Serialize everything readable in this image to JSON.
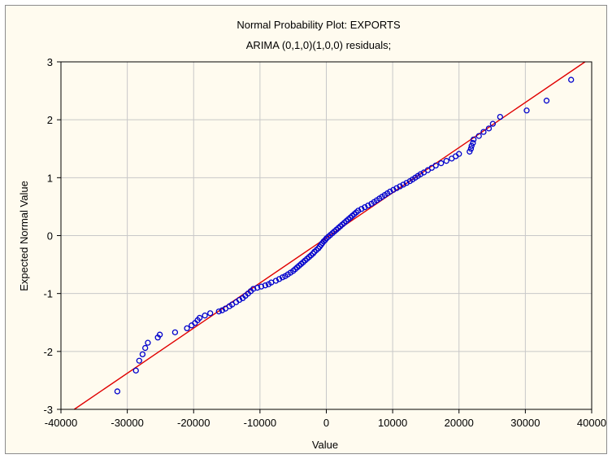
{
  "chart_data": {
    "type": "scatter",
    "title": "Normal Probability Plot: EXPORTS",
    "subtitle": "ARIMA (0,1,0)(1,0,0) residuals;",
    "xlabel": "Value",
    "ylabel": "Expected Normal Value",
    "xlim": [
      -40000,
      40000
    ],
    "ylim": [
      -3,
      3
    ],
    "xticks": [
      "-40000",
      "-30000",
      "-20000",
      "-10000",
      "0",
      "10000",
      "20000",
      "30000",
      "40000"
    ],
    "yticks": [
      "-3",
      "-2",
      "-1",
      "0",
      "1",
      "2",
      "3"
    ],
    "grid": true,
    "colors": {
      "points": "#0000cc",
      "fit_line": "#e00000",
      "grid": "#c8c8c8",
      "background": "#fffbef"
    },
    "fit_line": {
      "x": [
        -38000,
        39000
      ],
      "y": [
        -3.0,
        3.0
      ]
    },
    "series": [
      {
        "values": [
          [
            -31500,
            -2.69
          ],
          [
            -28700,
            -2.33
          ],
          [
            -28200,
            -2.16
          ],
          [
            -27700,
            -2.05
          ],
          [
            -27300,
            -1.94
          ],
          [
            -26900,
            -1.85
          ],
          [
            -25400,
            -1.76
          ],
          [
            -25100,
            -1.71
          ],
          [
            -22800,
            -1.67
          ],
          [
            -21000,
            -1.6
          ],
          [
            -20300,
            -1.55
          ],
          [
            -19800,
            -1.51
          ],
          [
            -19400,
            -1.46
          ],
          [
            -19100,
            -1.42
          ],
          [
            -18300,
            -1.38
          ],
          [
            -17500,
            -1.34
          ],
          [
            -16200,
            -1.31
          ],
          [
            -15700,
            -1.29
          ],
          [
            -15200,
            -1.26
          ],
          [
            -14600,
            -1.22
          ],
          [
            -14200,
            -1.19
          ],
          [
            -13600,
            -1.15
          ],
          [
            -13100,
            -1.11
          ],
          [
            -12600,
            -1.08
          ],
          [
            -12200,
            -1.04
          ],
          [
            -11800,
            -1.0
          ],
          [
            -11400,
            -0.96
          ],
          [
            -11000,
            -0.92
          ],
          [
            -10400,
            -0.9
          ],
          [
            -9800,
            -0.88
          ],
          [
            -9200,
            -0.86
          ],
          [
            -8700,
            -0.84
          ],
          [
            -8300,
            -0.81
          ],
          [
            -7600,
            -0.78
          ],
          [
            -7100,
            -0.75
          ],
          [
            -6600,
            -0.72
          ],
          [
            -6200,
            -0.7
          ],
          [
            -5800,
            -0.67
          ],
          [
            -5400,
            -0.64
          ],
          [
            -5000,
            -0.61
          ],
          [
            -4700,
            -0.58
          ],
          [
            -4400,
            -0.55
          ],
          [
            -4100,
            -0.52
          ],
          [
            -3800,
            -0.49
          ],
          [
            -3500,
            -0.46
          ],
          [
            -3200,
            -0.43
          ],
          [
            -2900,
            -0.4
          ],
          [
            -2600,
            -0.37
          ],
          [
            -2300,
            -0.34
          ],
          [
            -2000,
            -0.31
          ],
          [
            -1800,
            -0.28
          ],
          [
            -1500,
            -0.25
          ],
          [
            -1200,
            -0.22
          ],
          [
            -1000,
            -0.19
          ],
          [
            -800,
            -0.16
          ],
          [
            -600,
            -0.13
          ],
          [
            -400,
            -0.1
          ],
          [
            -200,
            -0.08
          ],
          [
            0,
            -0.05
          ],
          [
            300,
            -0.02
          ],
          [
            600,
            0.01
          ],
          [
            900,
            0.04
          ],
          [
            1200,
            0.07
          ],
          [
            1500,
            0.1
          ],
          [
            1800,
            0.13
          ],
          [
            2100,
            0.16
          ],
          [
            2400,
            0.19
          ],
          [
            2700,
            0.22
          ],
          [
            3000,
            0.25
          ],
          [
            3300,
            0.28
          ],
          [
            3600,
            0.31
          ],
          [
            3900,
            0.34
          ],
          [
            4200,
            0.37
          ],
          [
            4500,
            0.4
          ],
          [
            4800,
            0.43
          ],
          [
            5300,
            0.46
          ],
          [
            5800,
            0.49
          ],
          [
            6300,
            0.52
          ],
          [
            6800,
            0.55
          ],
          [
            7200,
            0.58
          ],
          [
            7600,
            0.61
          ],
          [
            8000,
            0.64
          ],
          [
            8400,
            0.67
          ],
          [
            8800,
            0.7
          ],
          [
            9200,
            0.73
          ],
          [
            9600,
            0.76
          ],
          [
            10100,
            0.79
          ],
          [
            10600,
            0.82
          ],
          [
            11100,
            0.85
          ],
          [
            11600,
            0.88
          ],
          [
            12100,
            0.91
          ],
          [
            12600,
            0.94
          ],
          [
            13000,
            0.97
          ],
          [
            13400,
            1.0
          ],
          [
            13800,
            1.03
          ],
          [
            14200,
            1.06
          ],
          [
            14700,
            1.09
          ],
          [
            15300,
            1.13
          ],
          [
            15900,
            1.17
          ],
          [
            16500,
            1.21
          ],
          [
            17300,
            1.25
          ],
          [
            18100,
            1.29
          ],
          [
            18900,
            1.33
          ],
          [
            19500,
            1.37
          ],
          [
            20000,
            1.41
          ],
          [
            21600,
            1.45
          ],
          [
            21800,
            1.5
          ],
          [
            21900,
            1.55
          ],
          [
            22100,
            1.6
          ],
          [
            22200,
            1.66
          ],
          [
            23000,
            1.72
          ],
          [
            23700,
            1.79
          ],
          [
            24500,
            1.85
          ],
          [
            25100,
            1.93
          ],
          [
            26200,
            2.05
          ],
          [
            30200,
            2.16
          ],
          [
            33200,
            2.33
          ],
          [
            36900,
            2.69
          ]
        ]
      }
    ]
  }
}
